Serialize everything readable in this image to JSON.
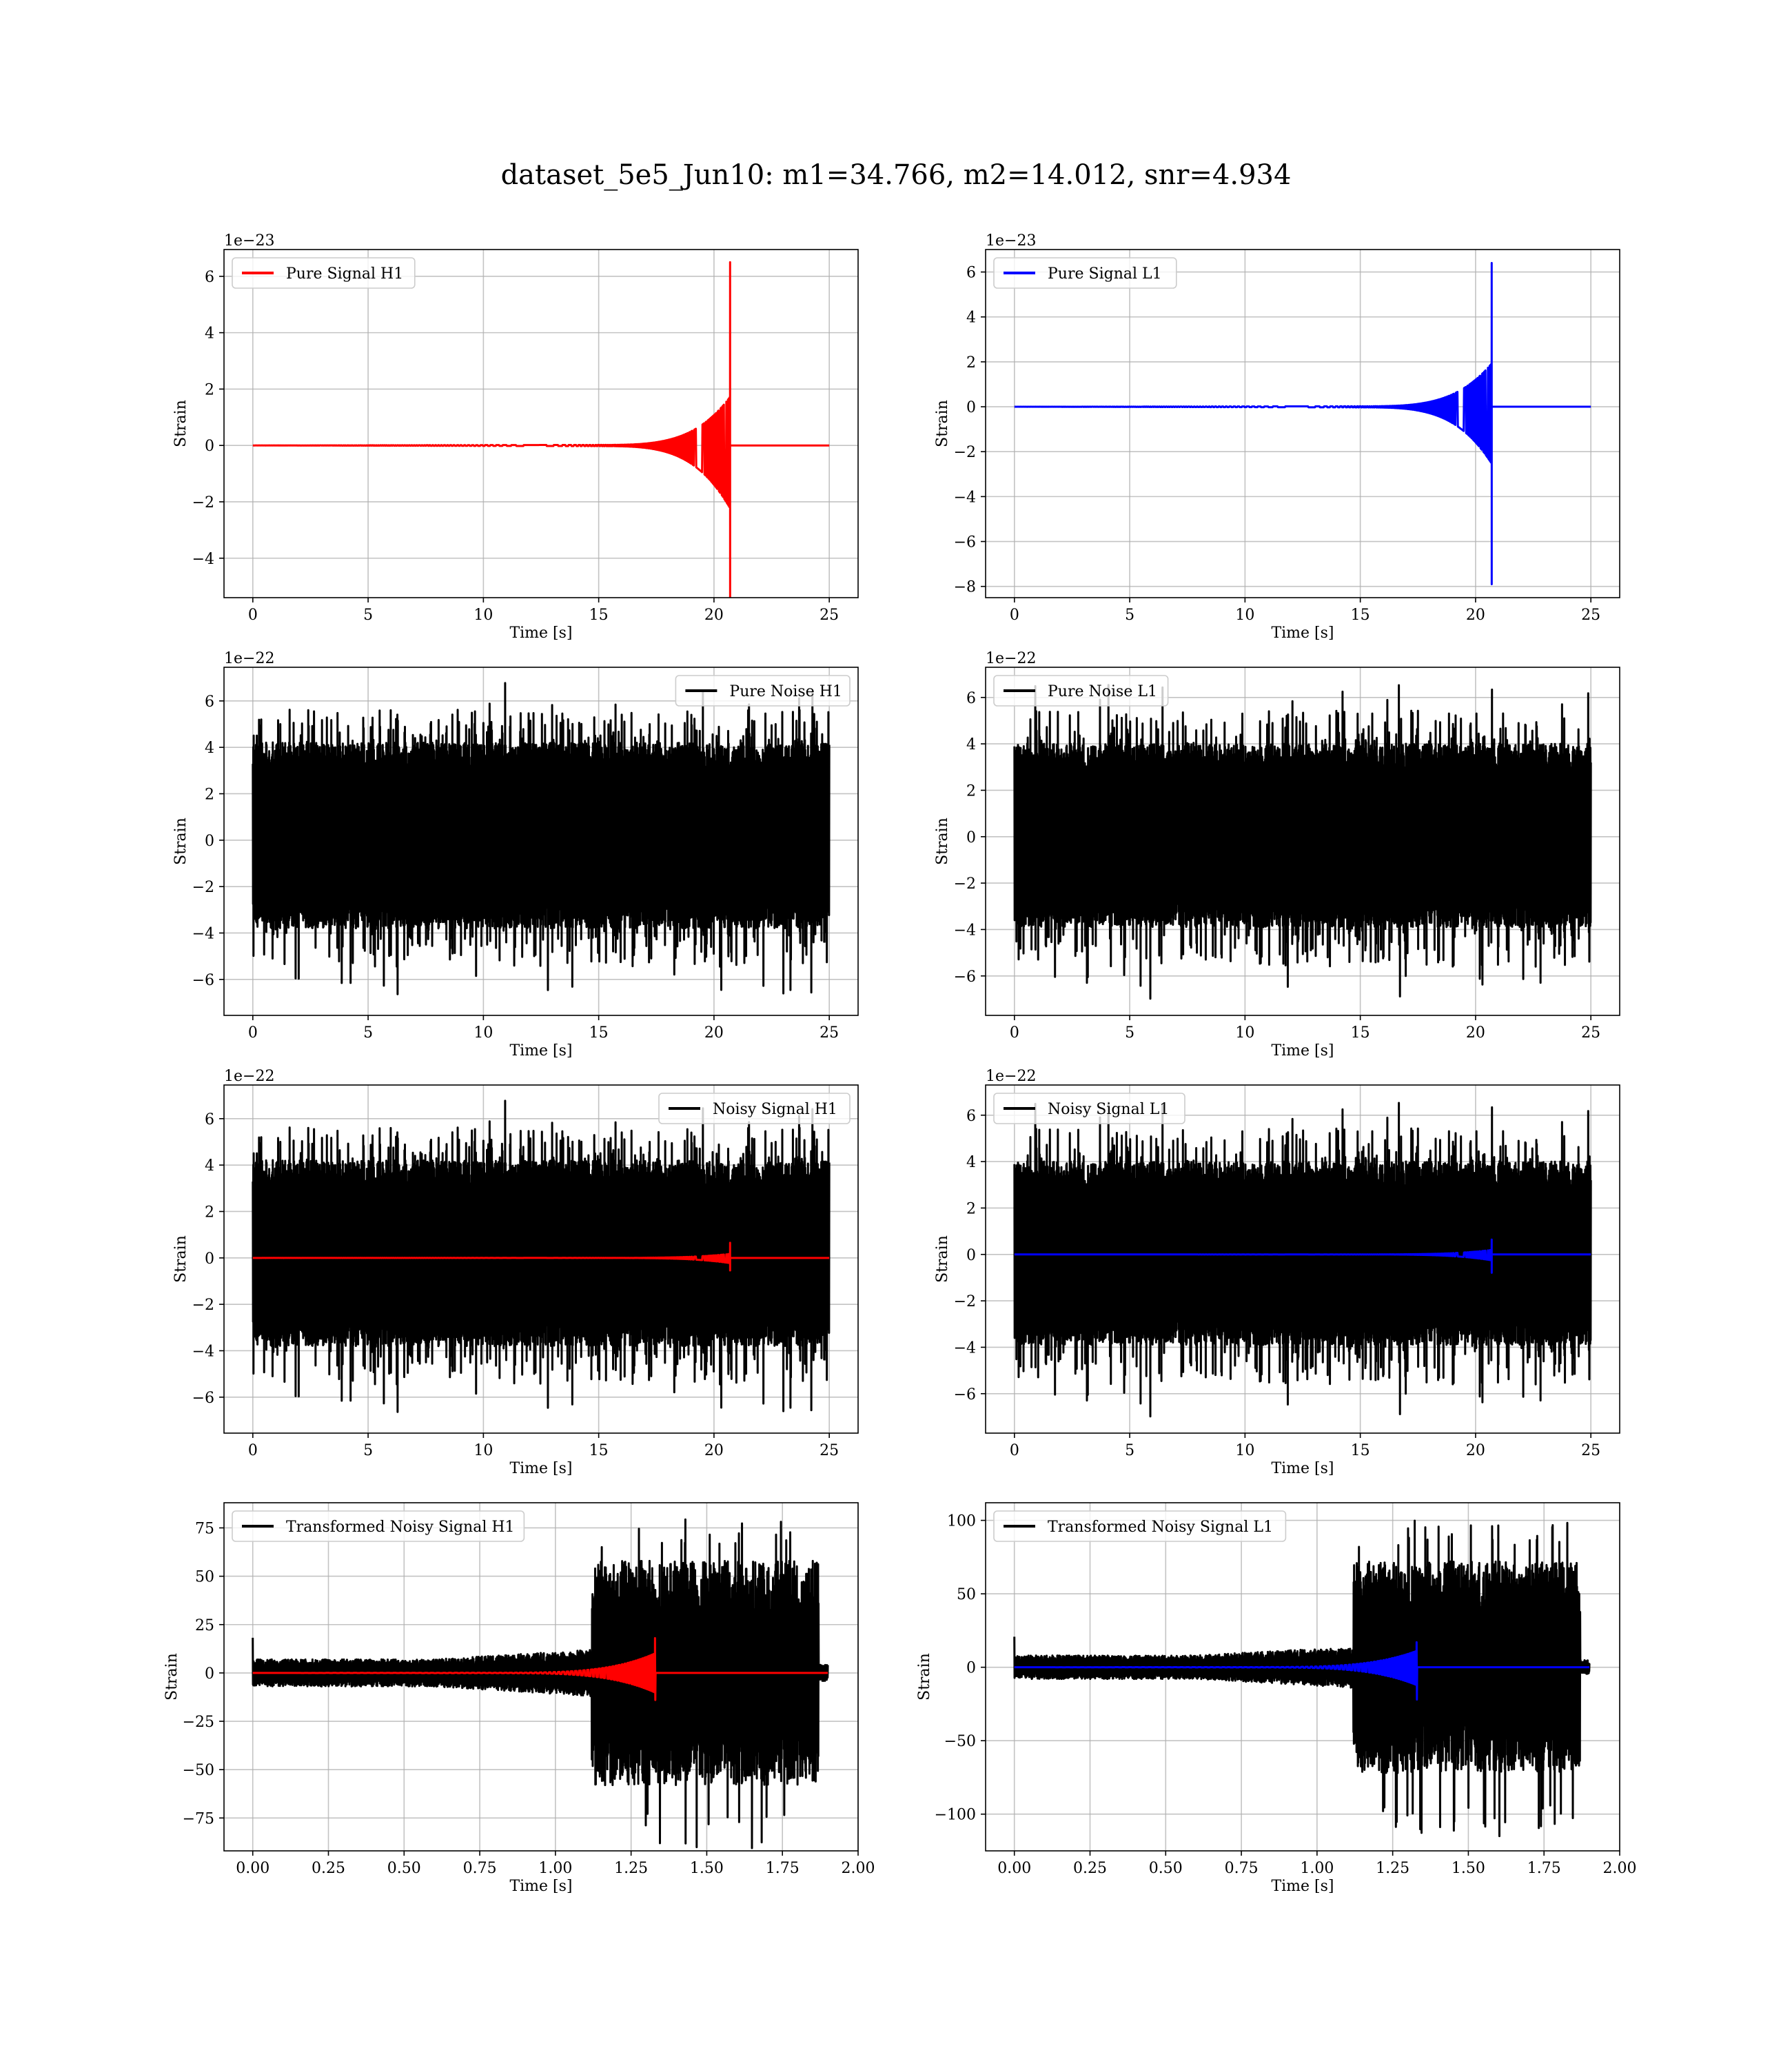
{
  "figure": {
    "suptitle": "dataset_5e5_Jun10: m1=34.766, m2=14.012, snr=4.934",
    "colors": {
      "h1_signal": "#ff0000",
      "l1_signal": "#0000ff",
      "noise": "#000000"
    }
  },
  "chart_data": [
    {
      "id": "pure_signal_h1",
      "type": "line",
      "row": 0,
      "col": 0,
      "xlabel": "Time [s]",
      "ylabel": "Strain",
      "offset_label": "1e−23",
      "xlim": [
        -1.25,
        26.25
      ],
      "ylim": [
        -5.4,
        6.95
      ],
      "xticks": [
        0,
        5,
        10,
        15,
        20,
        25
      ],
      "xtick_labels": [
        "0",
        "5",
        "10",
        "15",
        "20",
        "25"
      ],
      "yticks": [
        -4,
        -2,
        0,
        2,
        4,
        6
      ],
      "ytick_labels": [
        "−4",
        "−2",
        "0",
        "2",
        "4",
        "6"
      ],
      "legend": {
        "loc": "upper left",
        "entries": [
          {
            "label": "Pure Signal H1",
            "color": "#ff0000"
          }
        ]
      },
      "series": [
        {
          "name": "Pure Signal H1",
          "color": "#ff0000",
          "kind": "chirp",
          "x_start": 0,
          "x_end": 25,
          "t_merge": 20.7,
          "peak_pos": 6.5,
          "peak_neg": -5.4,
          "plateau_pos": 1.7,
          "plateau_neg": -2.2,
          "onset": 14.5
        }
      ]
    },
    {
      "id": "pure_signal_l1",
      "type": "line",
      "row": 0,
      "col": 1,
      "xlabel": "Time [s]",
      "ylabel": "Strain",
      "offset_label": "1e−23",
      "xlim": [
        -1.25,
        26.25
      ],
      "ylim": [
        -8.5,
        7.0
      ],
      "xticks": [
        0,
        5,
        10,
        15,
        20,
        25
      ],
      "xtick_labels": [
        "0",
        "5",
        "10",
        "15",
        "20",
        "25"
      ],
      "yticks": [
        -8,
        -6,
        -4,
        -2,
        0,
        2,
        4,
        6
      ],
      "ytick_labels": [
        "−8",
        "−6",
        "−4",
        "−2",
        "0",
        "2",
        "4",
        "6"
      ],
      "legend": {
        "loc": "upper left",
        "entries": [
          {
            "label": "Pure Signal L1",
            "color": "#0000ff"
          }
        ]
      },
      "series": [
        {
          "name": "Pure Signal L1",
          "color": "#0000ff",
          "kind": "chirp",
          "x_start": 0,
          "x_end": 25,
          "t_merge": 20.7,
          "peak_pos": 6.4,
          "peak_neg": -7.9,
          "plateau_pos": 1.9,
          "plateau_neg": -2.5,
          "onset": 14.5
        }
      ]
    },
    {
      "id": "pure_noise_h1",
      "type": "line",
      "row": 1,
      "col": 0,
      "xlabel": "Time [s]",
      "ylabel": "Strain",
      "offset_label": "1e−22",
      "xlim": [
        -1.25,
        26.25
      ],
      "ylim": [
        -7.55,
        7.45
      ],
      "xticks": [
        0,
        5,
        10,
        15,
        20,
        25
      ],
      "xtick_labels": [
        "0",
        "5",
        "10",
        "15",
        "20",
        "25"
      ],
      "yticks": [
        -6,
        -4,
        -2,
        0,
        2,
        4,
        6
      ],
      "ytick_labels": [
        "−6",
        "−4",
        "−2",
        "0",
        "2",
        "4",
        "6"
      ],
      "legend": {
        "loc": "upper right",
        "entries": [
          {
            "label": "Pure Noise H1",
            "color": "#000000"
          }
        ]
      },
      "series": [
        {
          "name": "Pure Noise H1",
          "color": "#000000",
          "kind": "noise",
          "x_start": 0,
          "x_end": 25,
          "band_pos": 4.2,
          "band_neg": -3.8,
          "max": 6.8,
          "min": -6.8,
          "seed": 11
        }
      ]
    },
    {
      "id": "pure_noise_l1",
      "type": "line",
      "row": 1,
      "col": 1,
      "xlabel": "Time [s]",
      "ylabel": "Strain",
      "offset_label": "1e−22",
      "xlim": [
        -1.25,
        26.25
      ],
      "ylim": [
        -7.7,
        7.3
      ],
      "xticks": [
        0,
        5,
        10,
        15,
        20,
        25
      ],
      "xtick_labels": [
        "0",
        "5",
        "10",
        "15",
        "20",
        "25"
      ],
      "yticks": [
        -6,
        -4,
        -2,
        0,
        2,
        4,
        6
      ],
      "ytick_labels": [
        "−6",
        "−4",
        "−2",
        "0",
        "2",
        "4",
        "6"
      ],
      "legend": {
        "loc": "upper left",
        "entries": [
          {
            "label": "Pure Noise L1",
            "color": "#000000"
          }
        ]
      },
      "series": [
        {
          "name": "Pure Noise L1",
          "color": "#000000",
          "kind": "noise",
          "x_start": 0,
          "x_end": 25,
          "band_pos": 4.0,
          "band_neg": -3.9,
          "max": 6.6,
          "min": -7.0,
          "seed": 29
        }
      ]
    },
    {
      "id": "noisy_signal_h1",
      "type": "line",
      "row": 2,
      "col": 0,
      "xlabel": "Time [s]",
      "ylabel": "Strain",
      "offset_label": "1e−22",
      "xlim": [
        -1.25,
        26.25
      ],
      "ylim": [
        -7.55,
        7.45
      ],
      "xticks": [
        0,
        5,
        10,
        15,
        20,
        25
      ],
      "xtick_labels": [
        "0",
        "5",
        "10",
        "15",
        "20",
        "25"
      ],
      "yticks": [
        -6,
        -4,
        -2,
        0,
        2,
        4,
        6
      ],
      "ytick_labels": [
        "−6",
        "−4",
        "−2",
        "0",
        "2",
        "4",
        "6"
      ],
      "legend": {
        "loc": "upper right",
        "entries": [
          {
            "label": "Noisy Signal H1",
            "color": "#000000"
          }
        ]
      },
      "series": [
        {
          "name": "Noisy Signal H1",
          "color": "#000000",
          "kind": "noise",
          "x_start": 0,
          "x_end": 25,
          "band_pos": 4.2,
          "band_neg": -3.8,
          "max": 6.8,
          "min": -6.8,
          "seed": 11
        },
        {
          "name": "Pure Signal H1",
          "color": "#ff0000",
          "kind": "chirp",
          "x_start": 0,
          "x_end": 25,
          "t_merge": 20.7,
          "peak_pos": 0.65,
          "peak_neg": -0.54,
          "plateau_pos": 0.17,
          "plateau_neg": -0.22,
          "onset": 14.5
        }
      ]
    },
    {
      "id": "noisy_signal_l1",
      "type": "line",
      "row": 2,
      "col": 1,
      "xlabel": "Time [s]",
      "ylabel": "Strain",
      "offset_label": "1e−22",
      "xlim": [
        -1.25,
        26.25
      ],
      "ylim": [
        -7.7,
        7.3
      ],
      "xticks": [
        0,
        5,
        10,
        15,
        20,
        25
      ],
      "xtick_labels": [
        "0",
        "5",
        "10",
        "15",
        "20",
        "25"
      ],
      "yticks": [
        -6,
        -4,
        -2,
        0,
        2,
        4,
        6
      ],
      "ytick_labels": [
        "−6",
        "−4",
        "−2",
        "0",
        "2",
        "4",
        "6"
      ],
      "legend": {
        "loc": "upper left",
        "entries": [
          {
            "label": "Noisy Signal L1",
            "color": "#000000"
          }
        ]
      },
      "series": [
        {
          "name": "Noisy Signal L1",
          "color": "#000000",
          "kind": "noise",
          "x_start": 0,
          "x_end": 25,
          "band_pos": 4.0,
          "band_neg": -3.9,
          "max": 6.6,
          "min": -7.0,
          "seed": 29
        },
        {
          "name": "Pure Signal L1",
          "color": "#0000ff",
          "kind": "chirp",
          "x_start": 0,
          "x_end": 25,
          "t_merge": 20.7,
          "peak_pos": 0.64,
          "peak_neg": -0.79,
          "plateau_pos": 0.19,
          "plateau_neg": -0.25,
          "onset": 14.5
        }
      ]
    },
    {
      "id": "transformed_noisy_signal_h1",
      "type": "line",
      "row": 3,
      "col": 0,
      "xlabel": "Time [s]",
      "ylabel": "Strain",
      "offset_label": "",
      "xlim": [
        -0.095,
        2.0
      ],
      "ylim": [
        -92,
        88
      ],
      "xticks": [
        0,
        0.25,
        0.5,
        0.75,
        1.0,
        1.25,
        1.5,
        1.75,
        2.0
      ],
      "xtick_labels": [
        "0.00",
        "0.25",
        "0.50",
        "0.75",
        "1.00",
        "1.25",
        "1.50",
        "1.75",
        "2.00"
      ],
      "yticks": [
        -75,
        -50,
        -25,
        0,
        25,
        50,
        75
      ],
      "ytick_labels": [
        "−75",
        "−50",
        "−25",
        "0",
        "25",
        "50",
        "75"
      ],
      "legend": {
        "loc": "upper left",
        "entries": [
          {
            "label": "Transformed Noisy Signal H1",
            "color": "#000000"
          }
        ]
      },
      "series": [
        {
          "name": "Transformed Noisy Signal H1",
          "color": "#000000",
          "kind": "whitened",
          "x_start": 0,
          "x_end": 1.9,
          "loud_start": 1.12,
          "loud_end": 1.87,
          "quiet_amp": 7,
          "mid_amp": 12,
          "loud_amp": 58,
          "max": 80,
          "min": -91,
          "seed": 5
        },
        {
          "name": "Pure Signal H1",
          "color": "#ff0000",
          "kind": "chirp",
          "x_start": 0,
          "x_end": 1.9,
          "t_merge": 1.33,
          "peak_pos": 18,
          "peak_neg": -14,
          "plateau_pos": 10,
          "plateau_neg": -10,
          "onset": 0.75
        }
      ]
    },
    {
      "id": "transformed_noisy_signal_l1",
      "type": "line",
      "row": 3,
      "col": 1,
      "xlabel": "Time [s]",
      "ylabel": "Strain",
      "offset_label": "",
      "xlim": [
        -0.095,
        2.0
      ],
      "ylim": [
        -125,
        112
      ],
      "xticks": [
        0,
        0.25,
        0.5,
        0.75,
        1.0,
        1.25,
        1.5,
        1.75,
        2.0
      ],
      "xtick_labels": [
        "0.00",
        "0.25",
        "0.50",
        "0.75",
        "1.00",
        "1.25",
        "1.50",
        "1.75",
        "2.00"
      ],
      "yticks": [
        -100,
        -50,
        0,
        50,
        100
      ],
      "ytick_labels": [
        "−100",
        "−50",
        "0",
        "50",
        "100"
      ],
      "legend": {
        "loc": "upper left",
        "entries": [
          {
            "label": "Transformed Noisy Signal L1",
            "color": "#000000"
          }
        ]
      },
      "series": [
        {
          "name": "Transformed Noisy Signal L1",
          "color": "#000000",
          "kind": "whitened",
          "x_start": 0,
          "x_end": 1.9,
          "loud_start": 1.12,
          "loud_end": 1.87,
          "quiet_amp": 8,
          "mid_amp": 14,
          "loud_amp": 72,
          "max": 101,
          "min": -115,
          "seed": 17
        },
        {
          "name": "Pure Signal L1",
          "color": "#0000ff",
          "kind": "chirp",
          "x_start": 0,
          "x_end": 1.9,
          "t_merge": 1.33,
          "peak_pos": 17,
          "peak_neg": -22,
          "plateau_pos": 11,
          "plateau_neg": -12,
          "onset": 0.75
        }
      ]
    }
  ]
}
